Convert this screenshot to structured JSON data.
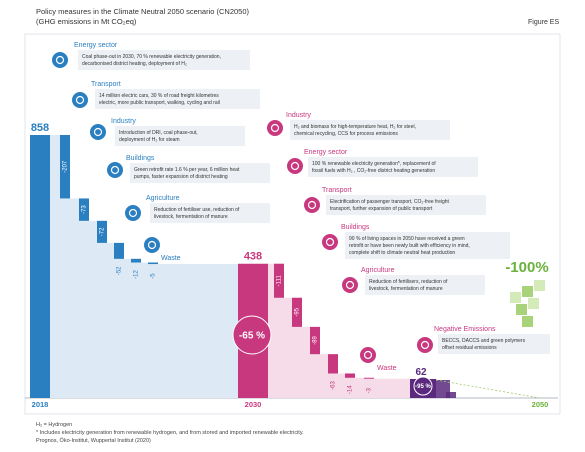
{
  "header": {
    "title": "Policy measures in the Climate Neutral 2050 scenario (CN2050)",
    "subtitle": "(GHG emissions in Mt CO₂eq)",
    "figure": "Figure ES"
  },
  "phases": [
    {
      "year": "2018",
      "total": 858,
      "color": "#2a7fc1",
      "shade": "#dde9f5",
      "steps": [
        {
          "sector": "Energy sector",
          "value": -207,
          "text": [
            "Coal phase-out in 2030, 70 % renewable electricity generation,",
            "decarbonised district heating, deployment of H₂"
          ]
        },
        {
          "sector": "Transport",
          "value": -73,
          "text": [
            "14 million electric cars, 30 % of road freight kilometres",
            "electric, more public transport, walking, cycling and rail"
          ]
        },
        {
          "sector": "Industry",
          "value": -72,
          "text": [
            "Introduction of DRI, coal phase-out,",
            "deployment of H₂ for steam"
          ]
        },
        {
          "sector": "Buildings",
          "value": -52,
          "text": [
            "Green retrofit rate 1.6 % per year, 6 million heat",
            "pumps, faster expansion of district heating"
          ]
        },
        {
          "sector": "Agriculture",
          "value": -12,
          "text": [
            "Reduction of fertiliser use, reduction of",
            "livestock, fermentation of manure"
          ]
        },
        {
          "sector": "Waste",
          "value": -5
        }
      ]
    },
    {
      "year": "2030",
      "total": 438,
      "reduction": "-65 %",
      "color": "#c8387f",
      "shade": "#f6dbe8",
      "steps": [
        {
          "sector": "Industry",
          "value": -111,
          "text": [
            "H₂ and biomass for high-temperature heat, H₂ for steel,",
            "chemical recycling, CCS for process emissions"
          ]
        },
        {
          "sector": "Energy sector",
          "value": -95,
          "text": [
            "100 % renewable electricity generation*, replacement of",
            "fossil fuels with H₂ , CO₂-free district heating generation"
          ]
        },
        {
          "sector": "Transport",
          "value": -89,
          "text": [
            "Electrification of passenger transport, CO₂-free freight",
            "transport, further expansion of public transport"
          ]
        },
        {
          "sector": "Buildings",
          "value": -63,
          "text": [
            "90 % of living spaces in 2050 have received a green",
            "retrofit or have been newly built with efficiency in mind,",
            "complete shift to climate neutral heat production"
          ]
        },
        {
          "sector": "Agriculture",
          "value": -14,
          "text": [
            "Reduction of fertilisers, reduction of",
            "livestock, fermentation of manure"
          ]
        },
        {
          "sector": "Waste",
          "value": -3
        }
      ]
    },
    {
      "year": "2050",
      "total": 62,
      "reduction": "-95 %",
      "final": "-100%",
      "color": "#5b2a7e",
      "title_color": "#c8387f",
      "steps": [
        {
          "sector": "Negative Emissions",
          "text": [
            "BECCS, DACCS and green polymers",
            "offset residual emissions"
          ]
        }
      ]
    }
  ],
  "footnotes": [
    "H₂ = Hydrogen",
    "* Includes electricity generation from renewable hydrogen, and from stored and imported renewable electricity.",
    "Prognos, Öko-Institut, Wuppertal Institut (2020)"
  ]
}
